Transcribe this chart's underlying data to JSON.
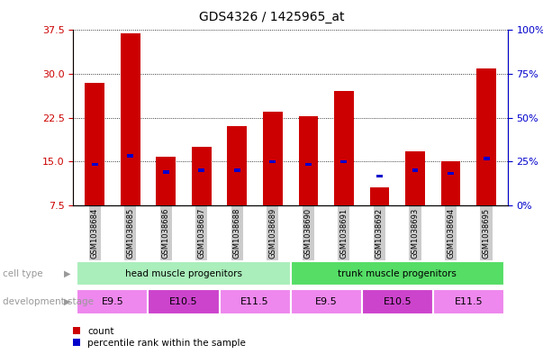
{
  "title": "GDS4326 / 1425965_at",
  "samples": [
    "GSM1038684",
    "GSM1038685",
    "GSM1038686",
    "GSM1038687",
    "GSM1038688",
    "GSM1038689",
    "GSM1038690",
    "GSM1038691",
    "GSM1038692",
    "GSM1038693",
    "GSM1038694",
    "GSM1038695"
  ],
  "counts": [
    28.5,
    37.0,
    15.8,
    17.5,
    21.0,
    23.5,
    22.8,
    27.0,
    10.5,
    16.8,
    15.0,
    31.0
  ],
  "percentiles_left": [
    14.5,
    16.0,
    13.2,
    13.5,
    13.5,
    15.0,
    14.5,
    15.0,
    12.5,
    13.5,
    13.0,
    15.5
  ],
  "ylim_left": [
    7.5,
    37.5
  ],
  "ylim_right": [
    0,
    100
  ],
  "yticks_left": [
    7.5,
    15.0,
    22.5,
    30.0,
    37.5
  ],
  "yticks_right": [
    0,
    25,
    50,
    75,
    100
  ],
  "bar_color": "#cc0000",
  "percentile_color": "#0000cc",
  "bar_width": 0.55,
  "cell_type_groups": [
    {
      "label": "head muscle progenitors",
      "start": 0,
      "end": 5,
      "color": "#aaeebb"
    },
    {
      "label": "trunk muscle progenitors",
      "start": 6,
      "end": 11,
      "color": "#55dd66"
    }
  ],
  "dev_stage_groups": [
    {
      "label": "E9.5",
      "start": 0,
      "end": 1,
      "color": "#ee88ee"
    },
    {
      "label": "E10.5",
      "start": 2,
      "end": 3,
      "color": "#cc44cc"
    },
    {
      "label": "E11.5",
      "start": 4,
      "end": 5,
      "color": "#ee88ee"
    },
    {
      "label": "E9.5",
      "start": 6,
      "end": 7,
      "color": "#ee88ee"
    },
    {
      "label": "E10.5",
      "start": 8,
      "end": 9,
      "color": "#cc44cc"
    },
    {
      "label": "E11.5",
      "start": 10,
      "end": 11,
      "color": "#ee88ee"
    }
  ],
  "cell_type_label": "cell type",
  "dev_stage_label": "development stage",
  "legend_count_label": "count",
  "legend_pct_label": "percentile rank within the sample",
  "background_color": "#ffffff",
  "plot_bg": "#ffffff",
  "ylabel_left_color": "#cc0000",
  "ylabel_right_color": "#0000cc",
  "xtick_bg": "#cccccc",
  "label_arrow_color": "#999999"
}
